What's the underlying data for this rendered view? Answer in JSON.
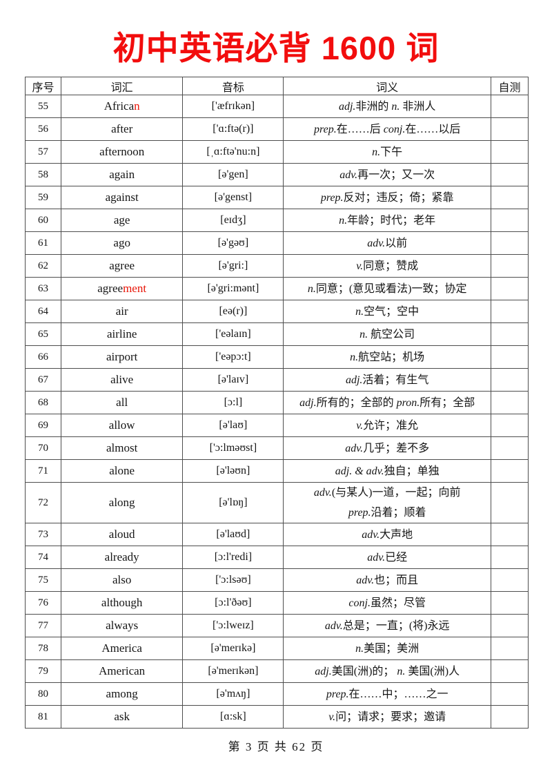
{
  "title": "初中英语必背 1600 词",
  "footer": "第 3 页 共 62 页",
  "colors": {
    "title_red": "#f20d0d",
    "highlight_red": "#e81507",
    "border": "#4d4d4d"
  },
  "table": {
    "headers": [
      "序号",
      "词汇",
      "音标",
      "词义",
      "自测"
    ],
    "self_test_value": "",
    "rows": [
      {
        "no": "55",
        "word": [
          {
            "t": "Africa"
          },
          {
            "t": "n",
            "r": true
          }
        ],
        "ipa": "['æfrɪkən]",
        "meaning": [
          [
            {
              "t": "adj.",
              "i": true
            },
            {
              "t": "非洲的 "
            },
            {
              "t": "n. ",
              "i": true
            },
            {
              "t": "非洲人"
            }
          ]
        ]
      },
      {
        "no": "56",
        "word": [
          {
            "t": "after"
          }
        ],
        "ipa": "['ɑ:ftə(r)]",
        "meaning": [
          [
            {
              "t": "prep.",
              "i": true
            },
            {
              "t": "在……后 "
            },
            {
              "t": "conj.",
              "i": true
            },
            {
              "t": "在……以后"
            }
          ]
        ]
      },
      {
        "no": "57",
        "word": [
          {
            "t": "afternoon"
          }
        ],
        "ipa": "[ˌɑ:ftə'nu:n]",
        "meaning": [
          [
            {
              "t": "n.",
              "i": true
            },
            {
              "t": "下午"
            }
          ]
        ]
      },
      {
        "no": "58",
        "word": [
          {
            "t": "again"
          }
        ],
        "ipa": "[ə'gen]",
        "meaning": [
          [
            {
              "t": "adv.",
              "i": true
            },
            {
              "t": "再一次；又一次"
            }
          ]
        ]
      },
      {
        "no": "59",
        "word": [
          {
            "t": "against"
          }
        ],
        "ipa": "[ə'genst]",
        "meaning": [
          [
            {
              "t": "prep.",
              "i": true
            },
            {
              "t": "反对；违反；倚；紧靠"
            }
          ]
        ]
      },
      {
        "no": "60",
        "word": [
          {
            "t": "age"
          }
        ],
        "ipa": "[eɪdʒ]",
        "meaning": [
          [
            {
              "t": "n.",
              "i": true
            },
            {
              "t": "年龄；时代；老年"
            }
          ]
        ]
      },
      {
        "no": "61",
        "word": [
          {
            "t": "ago"
          }
        ],
        "ipa": "[ə'gəʊ]",
        "meaning": [
          [
            {
              "t": "adv.",
              "i": true
            },
            {
              "t": "以前"
            }
          ]
        ]
      },
      {
        "no": "62",
        "word": [
          {
            "t": "agree"
          }
        ],
        "ipa": "[ə'gri:]",
        "meaning": [
          [
            {
              "t": "v.",
              "i": true
            },
            {
              "t": "同意；赞成"
            }
          ]
        ]
      },
      {
        "no": "63",
        "word": [
          {
            "t": "agree"
          },
          {
            "t": "ment",
            "r": true
          }
        ],
        "ipa": "[ə'gri:mənt]",
        "meaning": [
          [
            {
              "t": "n.",
              "i": true
            },
            {
              "t": "同意；(意见或看法)一致；协定"
            }
          ]
        ]
      },
      {
        "no": "64",
        "word": [
          {
            "t": "air"
          }
        ],
        "ipa": "[eə(r)]",
        "meaning": [
          [
            {
              "t": "n.",
              "i": true
            },
            {
              "t": "空气；空中"
            }
          ]
        ]
      },
      {
        "no": "65",
        "word": [
          {
            "t": "airline"
          }
        ],
        "ipa": "['eəlaɪn]",
        "meaning": [
          [
            {
              "t": "n. ",
              "i": true
            },
            {
              "t": "航空公司"
            }
          ]
        ]
      },
      {
        "no": "66",
        "word": [
          {
            "t": "airport"
          }
        ],
        "ipa": "['eəpɔ:t]",
        "meaning": [
          [
            {
              "t": "n.",
              "i": true
            },
            {
              "t": "航空站；机场"
            }
          ]
        ]
      },
      {
        "no": "67",
        "word": [
          {
            "t": "alive"
          }
        ],
        "ipa": "[ə'laɪv]",
        "meaning": [
          [
            {
              "t": "adj.",
              "i": true
            },
            {
              "t": "活着；有生气"
            }
          ]
        ]
      },
      {
        "no": "68",
        "word": [
          {
            "t": "all"
          }
        ],
        "ipa": "[ɔ:l]",
        "meaning": [
          [
            {
              "t": "adj.",
              "i": true
            },
            {
              "t": "所有的；全部的 "
            },
            {
              "t": "pron.",
              "i": true
            },
            {
              "t": "所有；全部"
            }
          ]
        ]
      },
      {
        "no": "69",
        "word": [
          {
            "t": "allow"
          }
        ],
        "ipa": "[ə'laʊ]",
        "meaning": [
          [
            {
              "t": "v.",
              "i": true
            },
            {
              "t": "允许；准允"
            }
          ]
        ]
      },
      {
        "no": "70",
        "word": [
          {
            "t": "almost"
          }
        ],
        "ipa": "['ɔ:lməʊst]",
        "meaning": [
          [
            {
              "t": "adv.",
              "i": true
            },
            {
              "t": "几乎；差不多"
            }
          ]
        ]
      },
      {
        "no": "71",
        "word": [
          {
            "t": "alone"
          }
        ],
        "ipa": "[ə'ləʊn]",
        "meaning": [
          [
            {
              "t": "adj. & adv.",
              "i": true
            },
            {
              "t": "独自；单独"
            }
          ]
        ]
      },
      {
        "no": "72",
        "word": [
          {
            "t": "along"
          }
        ],
        "ipa": "[ə'lɒŋ]",
        "meaning": [
          [
            {
              "t": "adv.",
              "i": true
            },
            {
              "t": "(与某人)一道，一起；向前"
            }
          ],
          [
            {
              "t": "prep.",
              "i": true
            },
            {
              "t": "沿着；顺着"
            }
          ]
        ]
      },
      {
        "no": "73",
        "word": [
          {
            "t": "aloud"
          }
        ],
        "ipa": "[ə'laʊd]",
        "meaning": [
          [
            {
              "t": "adv.",
              "i": true
            },
            {
              "t": "大声地"
            }
          ]
        ]
      },
      {
        "no": "74",
        "word": [
          {
            "t": "already"
          }
        ],
        "ipa": "[ɔ:l'redi]",
        "meaning": [
          [
            {
              "t": "adv.",
              "i": true
            },
            {
              "t": "已经"
            }
          ]
        ]
      },
      {
        "no": "75",
        "word": [
          {
            "t": "also"
          }
        ],
        "ipa": "['ɔ:lsəʊ]",
        "meaning": [
          [
            {
              "t": "adv.",
              "i": true
            },
            {
              "t": "也；而且"
            }
          ]
        ]
      },
      {
        "no": "76",
        "word": [
          {
            "t": "although"
          }
        ],
        "ipa": "[ɔ:l'ðəʊ]",
        "meaning": [
          [
            {
              "t": "conj.",
              "i": true
            },
            {
              "t": "虽然；尽管"
            }
          ]
        ]
      },
      {
        "no": "77",
        "word": [
          {
            "t": "always"
          }
        ],
        "ipa": "['ɔ:lweɪz]",
        "meaning": [
          [
            {
              "t": "adv.",
              "i": true
            },
            {
              "t": "总是；一直；(将)永远"
            }
          ]
        ]
      },
      {
        "no": "78",
        "word": [
          {
            "t": "America"
          }
        ],
        "ipa": "[ə'merɪkə]",
        "meaning": [
          [
            {
              "t": "n.",
              "i": true
            },
            {
              "t": "美国；美洲"
            }
          ]
        ]
      },
      {
        "no": "79",
        "word": [
          {
            "t": "American"
          }
        ],
        "ipa": "[ə'merɪkən]",
        "meaning": [
          [
            {
              "t": "adj.",
              "i": true
            },
            {
              "t": "美国(洲)的； "
            },
            {
              "t": "n. ",
              "i": true
            },
            {
              "t": "美国(洲)人"
            }
          ]
        ]
      },
      {
        "no": "80",
        "word": [
          {
            "t": "among"
          }
        ],
        "ipa": "[ə'mʌŋ]",
        "meaning": [
          [
            {
              "t": "prep.",
              "i": true
            },
            {
              "t": "在……中；……之一"
            }
          ]
        ]
      },
      {
        "no": "81",
        "word": [
          {
            "t": "ask"
          }
        ],
        "ipa": "[ɑ:sk]",
        "meaning": [
          [
            {
              "t": "v.",
              "i": true
            },
            {
              "t": "问；请求；要求；邀请"
            }
          ]
        ]
      }
    ]
  }
}
